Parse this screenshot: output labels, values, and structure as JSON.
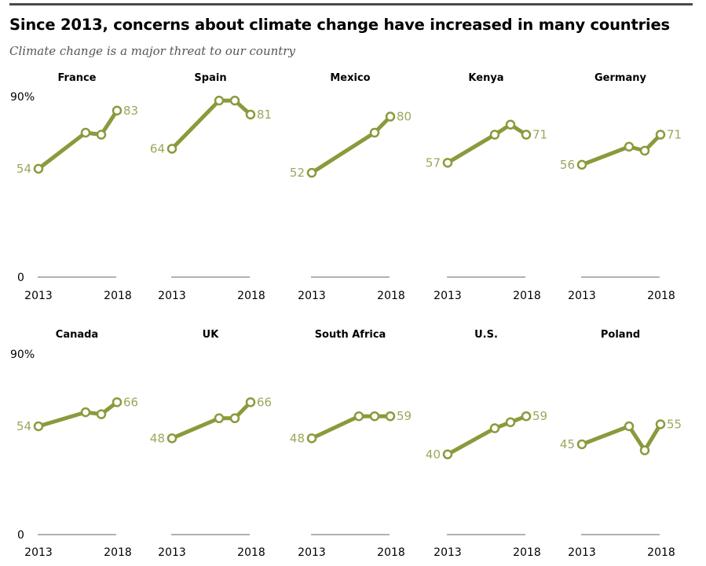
{
  "header": {
    "title": "Since 2013, concerns about climate change have increased in many countries",
    "subtitle": "Climate change is a major threat to our country"
  },
  "colors": {
    "line": "#8a9a3c",
    "label": "#98a95c",
    "baseline": "#999999",
    "text": "#000000"
  },
  "chart_data": {
    "type": "line",
    "title": "Since 2013, concerns about climate change have increased in many countries",
    "subtitle": "Climate change is a major threat to our country",
    "ylim": [
      0,
      90
    ],
    "y_tick_labels": [
      "90%",
      "0"
    ],
    "x_tick_labels": [
      "2013",
      "2018"
    ],
    "grid": false,
    "layout": "small-multiples, 2 rows x 5 columns",
    "panels": [
      {
        "name": "France",
        "x": [
          2013,
          2016,
          2017,
          2018
        ],
        "values": [
          54,
          72,
          71,
          83
        ],
        "labels": [
          "54",
          "83"
        ]
      },
      {
        "name": "Spain",
        "x": [
          2013,
          2016,
          2017,
          2018
        ],
        "values": [
          64,
          88,
          88,
          81
        ],
        "labels": [
          "64",
          "81"
        ]
      },
      {
        "name": "Mexico",
        "x": [
          2013,
          2017,
          2018
        ],
        "values": [
          52,
          72,
          80
        ],
        "labels": [
          "52",
          "80"
        ]
      },
      {
        "name": "Kenya",
        "x": [
          2013,
          2016,
          2017,
          2018
        ],
        "values": [
          57,
          71,
          76,
          71
        ],
        "labels": [
          "57",
          "71"
        ]
      },
      {
        "name": "Germany",
        "x": [
          2013,
          2016,
          2017,
          2018
        ],
        "values": [
          56,
          65,
          63,
          71
        ],
        "labels": [
          "56",
          "71"
        ]
      },
      {
        "name": "Canada",
        "x": [
          2013,
          2016,
          2017,
          2018
        ],
        "values": [
          54,
          61,
          60,
          66
        ],
        "labels": [
          "54",
          "66"
        ]
      },
      {
        "name": "UK",
        "x": [
          2013,
          2016,
          2017,
          2018
        ],
        "values": [
          48,
          58,
          58,
          66
        ],
        "labels": [
          "48",
          "66"
        ]
      },
      {
        "name": "South Africa",
        "x": [
          2013,
          2016,
          2017,
          2018
        ],
        "values": [
          48,
          59,
          59,
          59
        ],
        "labels": [
          "48",
          "59"
        ]
      },
      {
        "name": "U.S.",
        "x": [
          2013,
          2016,
          2017,
          2018
        ],
        "values": [
          40,
          53,
          56,
          59
        ],
        "labels": [
          "40",
          "59"
        ]
      },
      {
        "name": "Poland",
        "x": [
          2013,
          2016,
          2017,
          2018
        ],
        "values": [
          45,
          54,
          42,
          55
        ],
        "labels": [
          "45",
          "55"
        ]
      }
    ]
  }
}
